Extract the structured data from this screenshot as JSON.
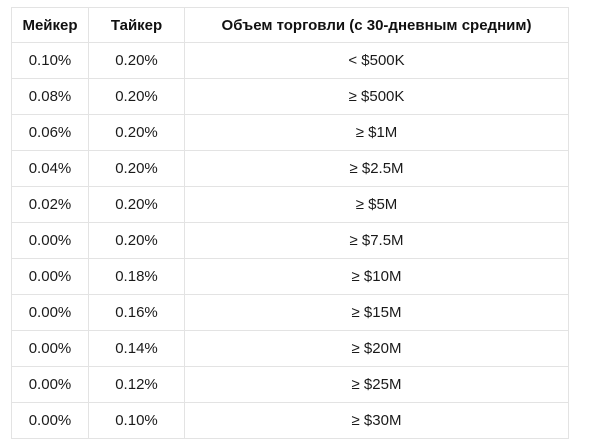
{
  "table": {
    "headers": {
      "maker": "Мейкер",
      "taker": "Тайкер",
      "volume": "Объем торговли (с 30-дневным средним)"
    },
    "rows": [
      {
        "maker": "0.10%",
        "taker": "0.20%",
        "volume": "< $500K"
      },
      {
        "maker": "0.08%",
        "taker": "0.20%",
        "volume": "≥ $500K"
      },
      {
        "maker": "0.06%",
        "taker": "0.20%",
        "volume": "≥ $1M"
      },
      {
        "maker": "0.04%",
        "taker": "0.20%",
        "volume": "≥ $2.5M"
      },
      {
        "maker": "0.02%",
        "taker": "0.20%",
        "volume": "≥ $5M"
      },
      {
        "maker": "0.00%",
        "taker": "0.20%",
        "volume": "≥ $7.5M"
      },
      {
        "maker": "0.00%",
        "taker": "0.18%",
        "volume": "≥ $10M"
      },
      {
        "maker": "0.00%",
        "taker": "0.16%",
        "volume": "≥ $15M"
      },
      {
        "maker": "0.00%",
        "taker": "0.14%",
        "volume": "≥ $20M"
      },
      {
        "maker": "0.00%",
        "taker": "0.12%",
        "volume": "≥ $25M"
      },
      {
        "maker": "0.00%",
        "taker": "0.10%",
        "volume": "≥ $30M"
      }
    ]
  }
}
